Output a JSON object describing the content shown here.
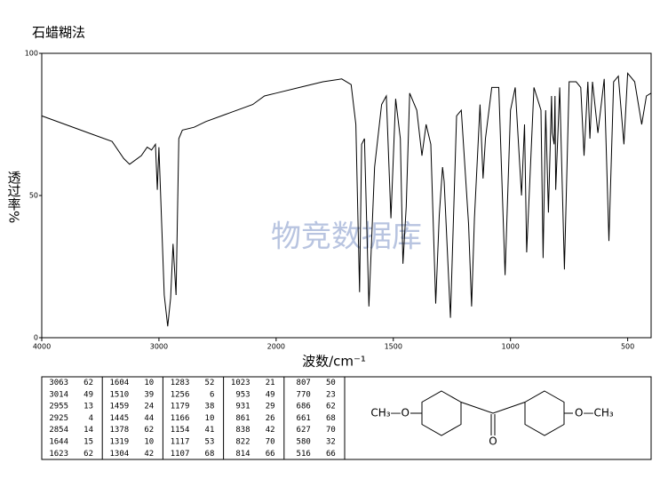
{
  "title": "石蜡糊法",
  "chart_data": {
    "type": "line",
    "xlabel": "波数/cm⁻¹",
    "ylabel": "透过率%",
    "watermark": "物竞数据库",
    "x": [
      4000,
      3800,
      3600,
      3400,
      3300,
      3250,
      3150,
      3100,
      3063,
      3030,
      3014,
      3000,
      2955,
      2925,
      2900,
      2880,
      2854,
      2830,
      2800,
      2700,
      2600,
      2400,
      2200,
      2100,
      2000,
      1900,
      1800,
      1720,
      1680,
      1660,
      1644,
      1635,
      1623,
      1604,
      1580,
      1550,
      1530,
      1510,
      1490,
      1470,
      1459,
      1445,
      1430,
      1400,
      1378,
      1360,
      1340,
      1319,
      1304,
      1290,
      1283,
      1256,
      1230,
      1210,
      1179,
      1166,
      1154,
      1130,
      1117,
      1107,
      1080,
      1050,
      1023,
      1000,
      980,
      953,
      940,
      931,
      900,
      870,
      861,
      850,
      838,
      825,
      822,
      814,
      810,
      807,
      790,
      770,
      750,
      720,
      700,
      686,
      670,
      661,
      650,
      627,
      600,
      580,
      560,
      540,
      516,
      500,
      470,
      440,
      420,
      400
    ],
    "series": [
      {
        "color": "#000000",
        "values": [
          78,
          75,
          72,
          69,
          63,
          61,
          64,
          67,
          66,
          68,
          52,
          67,
          15,
          4,
          14,
          33,
          15,
          70,
          73,
          74,
          76,
          79,
          82,
          85,
          86,
          88,
          90,
          91,
          89,
          75,
          16,
          68,
          70,
          11,
          60,
          82,
          85,
          42,
          84,
          70,
          26,
          46,
          86,
          80,
          64,
          75,
          68,
          12,
          43,
          60,
          55,
          7,
          78,
          80,
          40,
          11,
          42,
          82,
          56,
          70,
          88,
          88,
          22,
          80,
          88,
          50,
          75,
          30,
          88,
          80,
          28,
          80,
          44,
          85,
          72,
          68,
          85,
          52,
          88,
          24,
          90,
          90,
          88,
          64,
          90,
          70,
          90,
          72,
          91,
          34,
          90,
          92,
          68,
          93,
          90,
          75,
          85,
          86
        ]
      }
    ],
    "xlim": [
      4000,
      400
    ],
    "xticks": [
      4000,
      3000,
      2000,
      1500,
      1000,
      500
    ],
    "ylim": [
      0,
      100
    ],
    "yticks": [
      0,
      50,
      100
    ]
  },
  "peak_table": {
    "columns": [
      [
        [
          3063,
          62
        ],
        [
          3014,
          49
        ],
        [
          2955,
          13
        ],
        [
          2925,
          4
        ],
        [
          2854,
          14
        ],
        [
          1644,
          15
        ],
        [
          1623,
          62
        ]
      ],
      [
        [
          1604,
          10
        ],
        [
          1510,
          39
        ],
        [
          1459,
          24
        ],
        [
          1445,
          44
        ],
        [
          1378,
          62
        ],
        [
          1319,
          10
        ],
        [
          1304,
          42
        ]
      ],
      [
        [
          1283,
          52
        ],
        [
          1256,
          6
        ],
        [
          1179,
          38
        ],
        [
          1166,
          10
        ],
        [
          1154,
          41
        ],
        [
          1117,
          53
        ],
        [
          1107,
          68
        ]
      ],
      [
        [
          1023,
          21
        ],
        [
          953,
          49
        ],
        [
          931,
          29
        ],
        [
          861,
          26
        ],
        [
          838,
          42
        ],
        [
          822,
          70
        ],
        [
          814,
          66
        ]
      ],
      [
        [
          807,
          50
        ],
        [
          770,
          23
        ],
        [
          686,
          62
        ],
        [
          661,
          68
        ],
        [
          627,
          70
        ],
        [
          580,
          32
        ],
        [
          516,
          66
        ]
      ]
    ]
  },
  "structure": {
    "left": "CH₃—O",
    "right": "O—CH₃",
    "carbonyl": "O"
  }
}
